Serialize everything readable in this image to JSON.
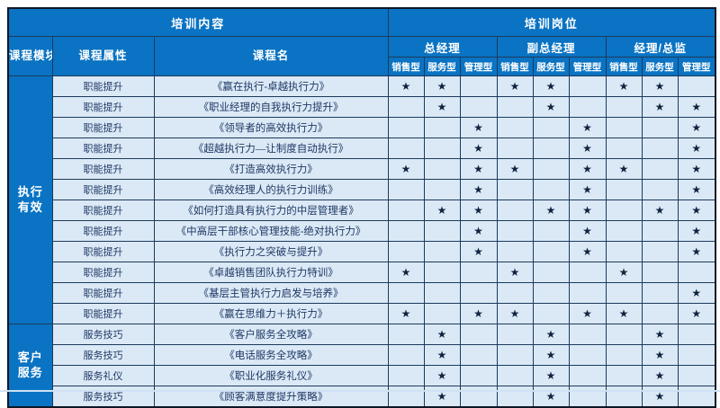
{
  "colors": {
    "header_blue": "#0a73c3",
    "row_light_blue": "#dbe9f6",
    "grid_line": "#1b3a5c",
    "text_dark_navy": "#1f3864",
    "star_color": "#10233f"
  },
  "table": {
    "star_symbol": "★",
    "top_header": {
      "content": "培训内容",
      "positions": "培训岗位"
    },
    "col_headers": {
      "module": "课程模块",
      "attribute": "课程属性",
      "course": "课程名"
    },
    "position_groups": [
      {
        "label": "总经理",
        "types": [
          "销售型",
          "服务型",
          "管理型"
        ]
      },
      {
        "label": "副总经理",
        "types": [
          "销售型",
          "服务型",
          "管理型"
        ]
      },
      {
        "label": "经理/总监",
        "types": [
          "销售型",
          "服务型",
          "管理型"
        ]
      }
    ],
    "modules": [
      {
        "name": "执行有效",
        "lines": [
          "执行",
          "有效"
        ],
        "rows": [
          {
            "attribute": "职能提升",
            "course": "《赢在执行-卓越执行力》",
            "stars": [
              1,
              1,
              0,
              1,
              1,
              0,
              1,
              1,
              0
            ]
          },
          {
            "attribute": "职能提升",
            "course": "《职业经理的自我执行力提升》",
            "stars": [
              0,
              1,
              0,
              0,
              1,
              0,
              0,
              1,
              1
            ]
          },
          {
            "attribute": "职能提升",
            "course": "《领导者的高效执行力》",
            "stars": [
              0,
              0,
              1,
              0,
              0,
              1,
              0,
              0,
              1
            ]
          },
          {
            "attribute": "职能提升",
            "course": "《超越执行力—让制度自动执行》",
            "stars": [
              0,
              0,
              1,
              0,
              0,
              1,
              0,
              0,
              1
            ]
          },
          {
            "attribute": "职能提升",
            "course": "《打造高效执行力》",
            "stars": [
              1,
              0,
              1,
              1,
              0,
              1,
              1,
              0,
              1
            ]
          },
          {
            "attribute": "职能提升",
            "course": "《高效经理人的执行力训练》",
            "stars": [
              0,
              0,
              1,
              0,
              0,
              1,
              0,
              0,
              1
            ]
          },
          {
            "attribute": "职能提升",
            "course": "《如何打造具有执行力的中层管理者》",
            "stars": [
              0,
              1,
              1,
              0,
              1,
              1,
              0,
              1,
              1
            ]
          },
          {
            "attribute": "职能提升",
            "course": "《中高层干部核心管理技能-绝对执行力》",
            "stars": [
              0,
              0,
              1,
              0,
              0,
              1,
              0,
              0,
              1
            ]
          },
          {
            "attribute": "职能提升",
            "course": "《执行力之突破与提升》",
            "stars": [
              0,
              0,
              1,
              0,
              0,
              1,
              0,
              0,
              1
            ]
          },
          {
            "attribute": "职能提升",
            "course": "《卓越销售团队执行力特训》",
            "stars": [
              1,
              0,
              0,
              1,
              0,
              0,
              1,
              0,
              0
            ]
          },
          {
            "attribute": "职能提升",
            "course": "《基层主管执行力启发与培养》",
            "stars": [
              0,
              0,
              0,
              0,
              0,
              0,
              0,
              0,
              1
            ]
          },
          {
            "attribute": "职能提升",
            "course": "《赢在思维力＋执行力》",
            "stars": [
              1,
              0,
              1,
              1,
              0,
              1,
              1,
              0,
              1
            ]
          }
        ]
      },
      {
        "name": "客户服务",
        "lines": [
          "客户",
          "服务"
        ],
        "rows": [
          {
            "attribute": "服务技巧",
            "course": "《客户服务全攻略》",
            "stars": [
              0,
              1,
              0,
              0,
              1,
              0,
              0,
              1,
              0
            ]
          },
          {
            "attribute": "服务技巧",
            "course": "《电话服务全攻略》",
            "stars": [
              0,
              1,
              0,
              0,
              1,
              0,
              0,
              1,
              0
            ]
          },
          {
            "attribute": "服务礼仪",
            "course": "《职业化服务礼仪》",
            "stars": [
              0,
              1,
              0,
              0,
              1,
              0,
              0,
              1,
              0
            ]
          },
          {
            "attribute": "服务技巧",
            "course": "《顾客满意度提升策略》",
            "stars": [
              0,
              1,
              0,
              0,
              1,
              0,
              0,
              1,
              0
            ]
          }
        ]
      }
    ]
  }
}
